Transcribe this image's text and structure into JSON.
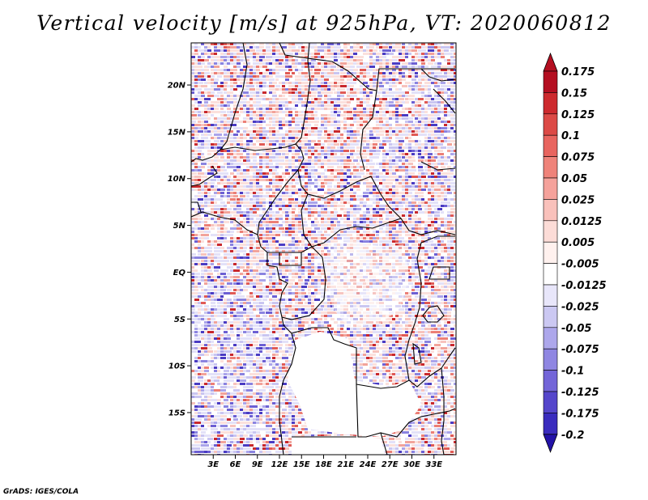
{
  "title": "Vertical velocity [m/s] at 925hPa, VT: 2020060812",
  "credit": "GrADS: IGES/COLA",
  "map": {
    "lat_range": [
      -19.5,
      24.5
    ],
    "lon_range": [
      0,
      36
    ],
    "lat_ticks": [
      {
        "value": 20,
        "label": "20N"
      },
      {
        "value": 15,
        "label": "15N"
      },
      {
        "value": 10,
        "label": "10N"
      },
      {
        "value": 5,
        "label": "5N"
      },
      {
        "value": 0,
        "label": "EQ"
      },
      {
        "value": -5,
        "label": "5S"
      },
      {
        "value": -10,
        "label": "10S"
      },
      {
        "value": -15,
        "label": "15S"
      }
    ],
    "lon_ticks": [
      {
        "value": 3,
        "label": "3E"
      },
      {
        "value": 6,
        "label": "6E"
      },
      {
        "value": 9,
        "label": "9E"
      },
      {
        "value": 12,
        "label": "12E"
      },
      {
        "value": 15,
        "label": "15E"
      },
      {
        "value": 18,
        "label": "18E"
      },
      {
        "value": 21,
        "label": "21E"
      },
      {
        "value": 24,
        "label": "24E"
      },
      {
        "value": 27,
        "label": "27E"
      },
      {
        "value": 30,
        "label": "30E"
      },
      {
        "value": 33,
        "label": "33E"
      }
    ]
  },
  "colorbar": {
    "labels": [
      "0.175",
      "0.15",
      "0.125",
      "0.1",
      "0.075",
      "0.05",
      "0.025",
      "0.0125",
      "0.005",
      "-0.005",
      "-0.0125",
      "-0.025",
      "-0.05",
      "-0.075",
      "-0.1",
      "-0.125",
      "-0.175",
      "-0.2"
    ],
    "colors": [
      "#b40f21",
      "#cd2a2e",
      "#dc4a46",
      "#e8655f",
      "#ef837a",
      "#f5a29b",
      "#f9c1bb",
      "#fcdcd7",
      "#fff1ee",
      "#ffffff",
      "#e8e6fa",
      "#cbc8f2",
      "#ada7eb",
      "#8f86e2",
      "#7365d8",
      "#5546cb",
      "#3a2cbe",
      "#2312a8"
    ]
  }
}
